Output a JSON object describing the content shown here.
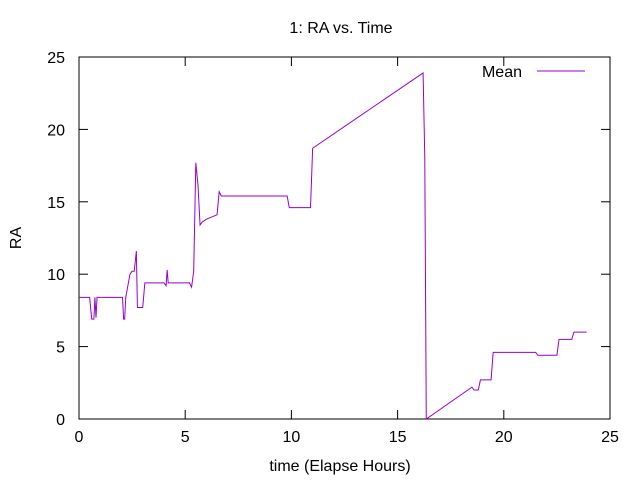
{
  "chart_data": {
    "type": "line",
    "title": "1: RA vs. Time",
    "xlabel": "time (Elapse Hours)",
    "ylabel": "RA",
    "xlim": [
      0,
      25
    ],
    "ylim": [
      0,
      25
    ],
    "x_ticks": [
      0,
      5,
      10,
      15,
      20,
      25
    ],
    "y_ticks": [
      0,
      5,
      10,
      15,
      20,
      25
    ],
    "grid": false,
    "legend_position": "top-right",
    "series": [
      {
        "name": "Mean",
        "color": "#9400d3",
        "points": [
          [
            0.0,
            8.4
          ],
          [
            0.5,
            8.4
          ],
          [
            0.6,
            6.9
          ],
          [
            0.7,
            6.9
          ],
          [
            0.75,
            8.4
          ],
          [
            0.8,
            7.0
          ],
          [
            0.85,
            8.4
          ],
          [
            2.05,
            8.4
          ],
          [
            2.1,
            6.9
          ],
          [
            2.15,
            6.9
          ],
          [
            2.2,
            8.4
          ],
          [
            2.4,
            10.0
          ],
          [
            2.5,
            10.2
          ],
          [
            2.6,
            10.2
          ],
          [
            2.7,
            11.6
          ],
          [
            2.75,
            7.7
          ],
          [
            3.0,
            7.7
          ],
          [
            3.1,
            9.4
          ],
          [
            4.0,
            9.4
          ],
          [
            4.1,
            9.2
          ],
          [
            4.15,
            10.3
          ],
          [
            4.2,
            9.4
          ],
          [
            5.2,
            9.4
          ],
          [
            5.3,
            9.1
          ],
          [
            5.4,
            10.2
          ],
          [
            5.5,
            17.7
          ],
          [
            5.6,
            16.2
          ],
          [
            5.7,
            13.4
          ],
          [
            5.8,
            13.6
          ],
          [
            6.0,
            13.8
          ],
          [
            6.5,
            14.1
          ],
          [
            6.6,
            15.7
          ],
          [
            6.7,
            15.4
          ],
          [
            9.8,
            15.4
          ],
          [
            9.9,
            14.6
          ],
          [
            10.9,
            14.6
          ],
          [
            11.0,
            18.7
          ],
          [
            16.2,
            23.9
          ],
          [
            16.28,
            18.0
          ],
          [
            16.35,
            0.0
          ],
          [
            18.5,
            2.2
          ],
          [
            18.6,
            2.0
          ],
          [
            18.8,
            2.0
          ],
          [
            18.9,
            2.7
          ],
          [
            19.4,
            2.7
          ],
          [
            19.5,
            4.6
          ],
          [
            21.5,
            4.6
          ],
          [
            21.6,
            4.4
          ],
          [
            22.5,
            4.4
          ],
          [
            22.6,
            5.5
          ],
          [
            23.2,
            5.5
          ],
          [
            23.3,
            6.0
          ],
          [
            23.9,
            6.0
          ]
        ]
      }
    ]
  }
}
